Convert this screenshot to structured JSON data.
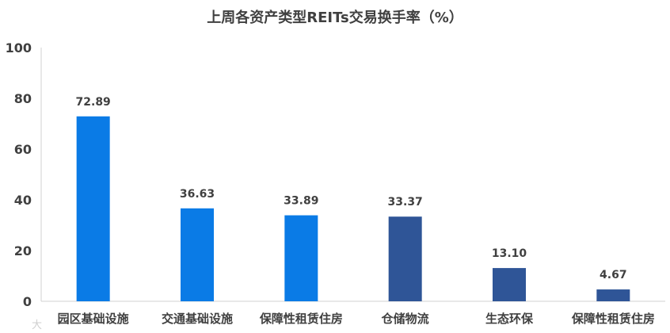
{
  "chart_data": {
    "type": "bar",
    "title": "上周各资产类型REITs交易换手率（%）",
    "categories": [
      "园区基础设施",
      "交通基础设施",
      "保障性租赁住房",
      "仓储物流",
      "生态环保",
      "保障性租赁住房"
    ],
    "values": [
      72.89,
      36.63,
      33.89,
      33.37,
      13.1,
      4.67
    ],
    "value_labels": [
      "72.89",
      "36.63",
      "33.89",
      "33.37",
      "13.10",
      "4.67"
    ],
    "bar_colors": [
      "#0A7BE6",
      "#0A7BE6",
      "#0A7BE6",
      "#2F5597",
      "#2F5597",
      "#2F5597"
    ],
    "ylim": [
      0,
      100
    ],
    "yticks": [
      0,
      20,
      40,
      60,
      80,
      100
    ],
    "xlabel": "",
    "ylabel": "",
    "grid": false,
    "legend": "none"
  },
  "watermark": "大"
}
